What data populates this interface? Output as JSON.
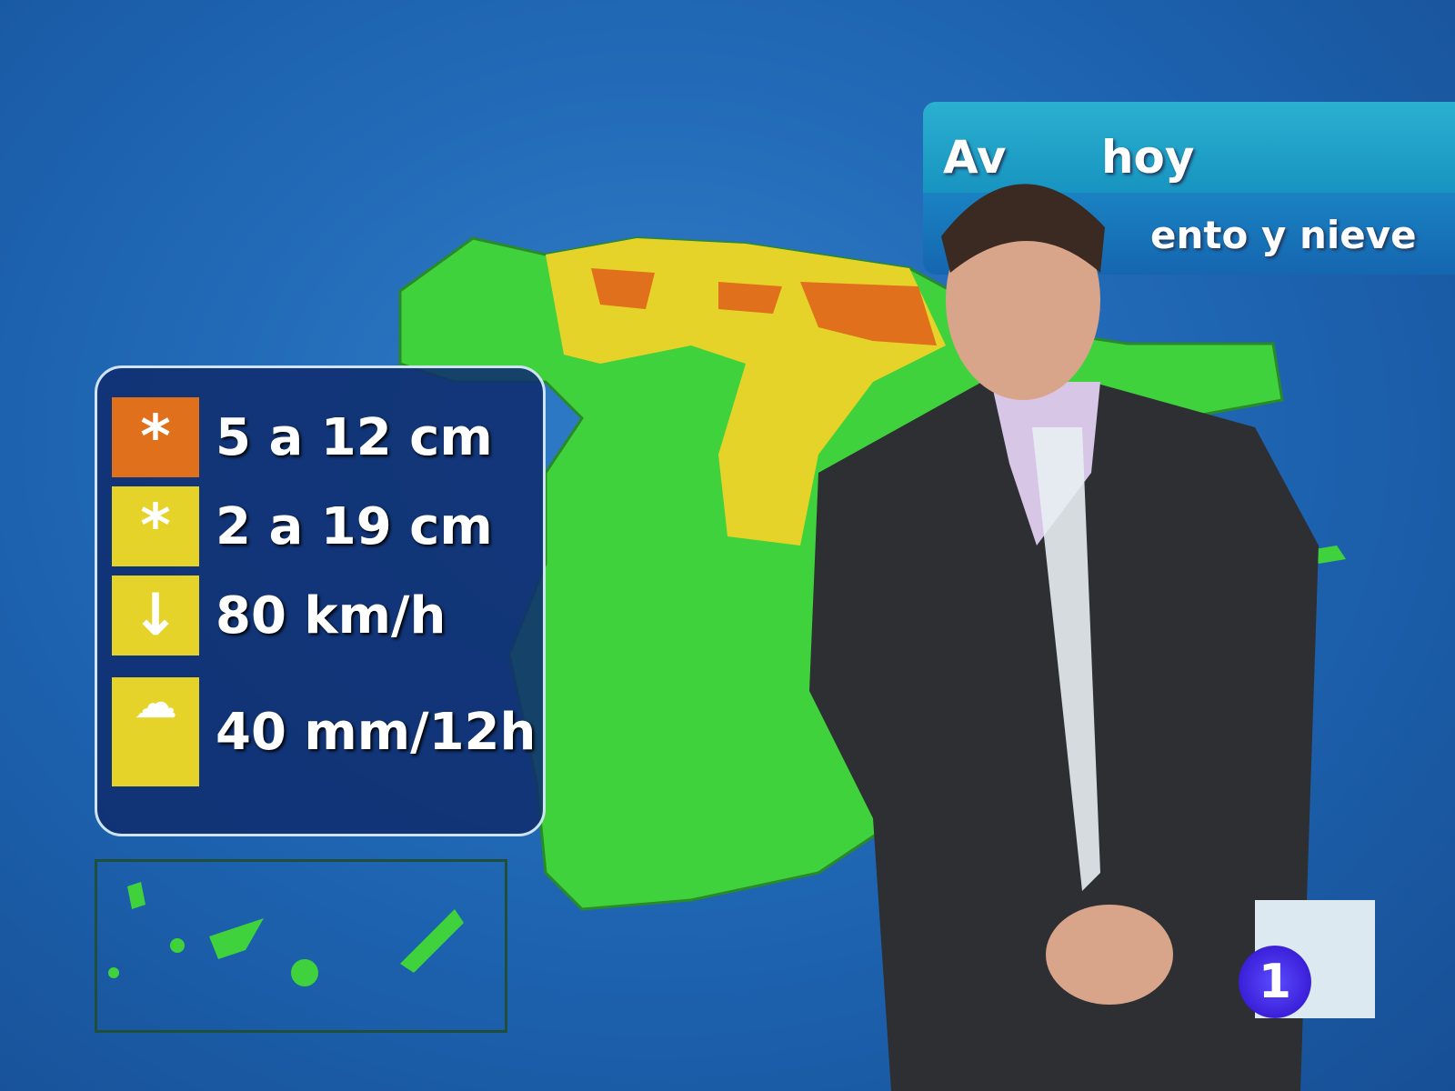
{
  "banner": {
    "title_visible": "Av      hoy",
    "subtitle_visible": "ento y nieve"
  },
  "legend": {
    "items": [
      {
        "icon": "snowflake-icon",
        "color": "#e0701c",
        "label": "5 a 12 cm"
      },
      {
        "icon": "snowflake-icon",
        "color": "#e6d32a",
        "label": "2 a 19 cm"
      },
      {
        "icon": "wind-arrow-icon",
        "color": "#e6d32a",
        "label": "80 km/h"
      },
      {
        "icon": "rain-cloud-icon",
        "color": "#e6d32a",
        "label": "40 mm/12h"
      }
    ]
  },
  "colors": {
    "land": "#3fd23c",
    "warning_yellow": "#e6d32a",
    "warning_orange": "#e0701c",
    "sea": "#1d63b0"
  },
  "logo": {
    "channel": "1"
  }
}
